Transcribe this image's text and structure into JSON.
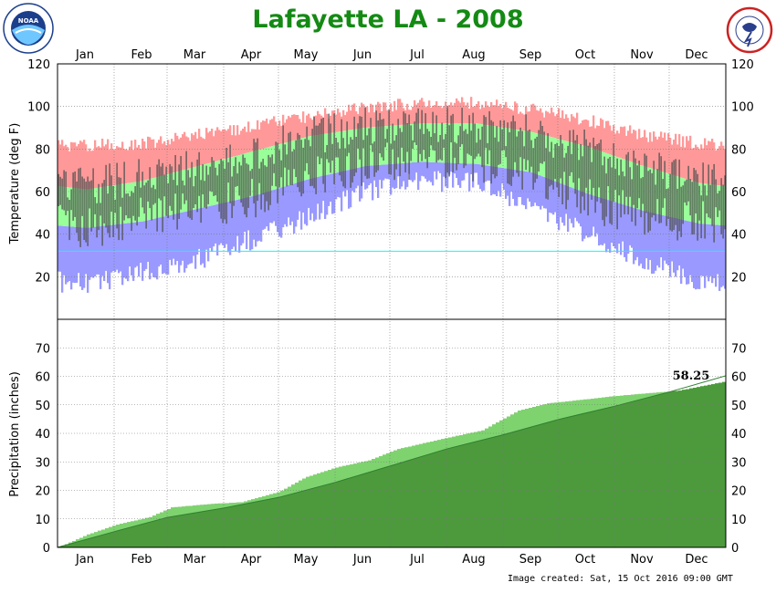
{
  "title": "Lafayette LA - 2008",
  "image_created": "Image created: Sat, 15 Oct 2016 09:00 GMT",
  "logos": {
    "left": "NOAA",
    "right": "NATIONAL WEATHER SERVICE"
  },
  "colors": {
    "record_high": "#ff9999",
    "normal_band": "#99ff99",
    "record_low": "#9999ff",
    "observed_bar": "#4d4d4d",
    "freeze_line": "#00ffff",
    "precip_normal": "#4c9a3c",
    "precip_observed": "#7ed36f",
    "precip_deficit": "#a89a86",
    "title": "#148a14"
  },
  "chart_data": [
    {
      "type": "bar",
      "panel": "temperature",
      "ylabel": "Temperature (deg F)",
      "ylim": [
        0,
        120
      ],
      "yticks": [
        20,
        40,
        60,
        80,
        100,
        120
      ],
      "months": [
        "Jan",
        "Feb",
        "Mar",
        "Apr",
        "May",
        "Jun",
        "Jul",
        "Aug",
        "Sep",
        "Oct",
        "Nov",
        "Dec"
      ],
      "grid": true,
      "freezing_line": 32,
      "series": [
        {
          "key": "record_high",
          "monthly_mid": [
            81,
            82,
            86,
            90,
            95,
            99,
            101,
            101,
            98,
            93,
            86,
            82
          ]
        },
        {
          "key": "normal_high",
          "monthly_mid": [
            61,
            65,
            72,
            79,
            86,
            90,
            92,
            92,
            88,
            81,
            72,
            64
          ]
        },
        {
          "key": "normal_low",
          "monthly_mid": [
            43,
            46,
            52,
            58,
            66,
            72,
            74,
            73,
            69,
            59,
            51,
            45
          ]
        },
        {
          "key": "record_low",
          "monthly_mid": [
            17,
            22,
            28,
            38,
            48,
            60,
            65,
            64,
            53,
            40,
            27,
            18
          ]
        },
        {
          "key": "observed_high",
          "monthly_mid": [
            62,
            68,
            71,
            79,
            86,
            91,
            92,
            91,
            87,
            80,
            71,
            67
          ]
        },
        {
          "key": "observed_low",
          "monthly_mid": [
            42,
            49,
            51,
            57,
            66,
            73,
            74,
            73,
            69,
            56,
            48,
            46
          ]
        }
      ]
    },
    {
      "type": "area",
      "panel": "precipitation",
      "ylabel": "Precipitation (inches)",
      "ylim": [
        0,
        80
      ],
      "yticks": [
        0,
        10,
        20,
        30,
        40,
        50,
        60,
        70
      ],
      "grid": true,
      "annotation": "58.25",
      "series": [
        {
          "key": "normal_cumulative",
          "day": [
            0,
            31,
            60,
            91,
            121,
            152,
            182,
            213,
            244,
            274,
            305,
            335,
            366
          ],
          "values": [
            0,
            5.5,
            10.5,
            13.8,
            17.5,
            22.8,
            28.5,
            34.5,
            39.5,
            44.8,
            49.5,
            54.5,
            60.2
          ]
        },
        {
          "key": "observed_cumulative",
          "day": [
            0,
            16,
            32,
            50,
            62,
            85,
            100,
            121,
            135,
            152,
            170,
            186,
            210,
            232,
            252,
            268,
            283,
            304,
            322,
            340,
            356,
            366
          ],
          "values": [
            0,
            4.5,
            8.0,
            10.6,
            14.0,
            15.3,
            15.8,
            19.5,
            24.5,
            28.0,
            30.5,
            34.5,
            38.0,
            41.0,
            48.0,
            50.5,
            51.5,
            53.0,
            54.0,
            55.0,
            57.0,
            58.25
          ]
        }
      ]
    }
  ]
}
